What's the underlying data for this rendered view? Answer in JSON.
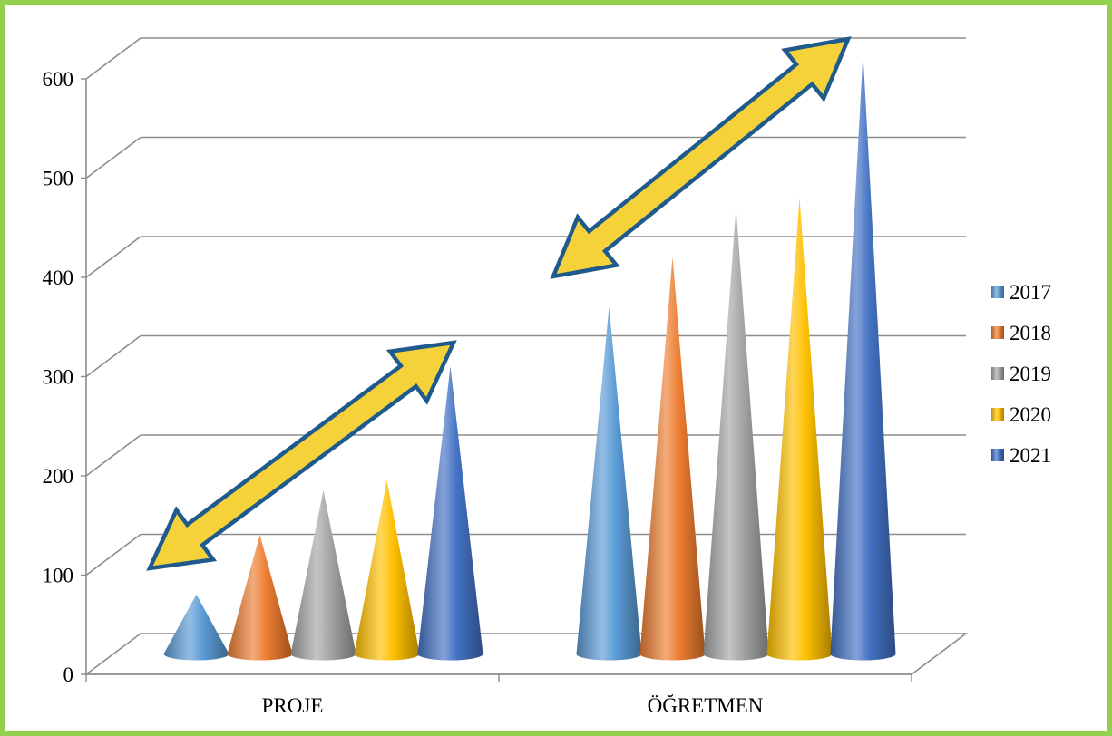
{
  "chart_data": {
    "type": "bar",
    "style": "3d-cone",
    "categories": [
      "PROJE",
      "ÖĞRETMEN"
    ],
    "series": [
      {
        "name": "2017",
        "color": "#5B9BD5",
        "values": [
          60,
          350
        ]
      },
      {
        "name": "2018",
        "color": "#ED7D31",
        "values": [
          120,
          400
        ]
      },
      {
        "name": "2019",
        "color": "#A5A5A5",
        "values": [
          165,
          450
        ]
      },
      {
        "name": "2020",
        "color": "#FFC000",
        "values": [
          175,
          460
        ]
      },
      {
        "name": "2021",
        "color": "#4472C4",
        "values": [
          290,
          605
        ]
      }
    ],
    "yticks": [
      "0",
      "100",
      "200",
      "300",
      "400",
      "500",
      "600"
    ],
    "ylim": [
      0,
      600
    ],
    "grid": true,
    "legend": "right",
    "annotations": "two upward trend arrows, one per category",
    "frame_color": "#92D050",
    "arrow_fill": "#F5D23A",
    "arrow_stroke": "#1F5A8C"
  }
}
